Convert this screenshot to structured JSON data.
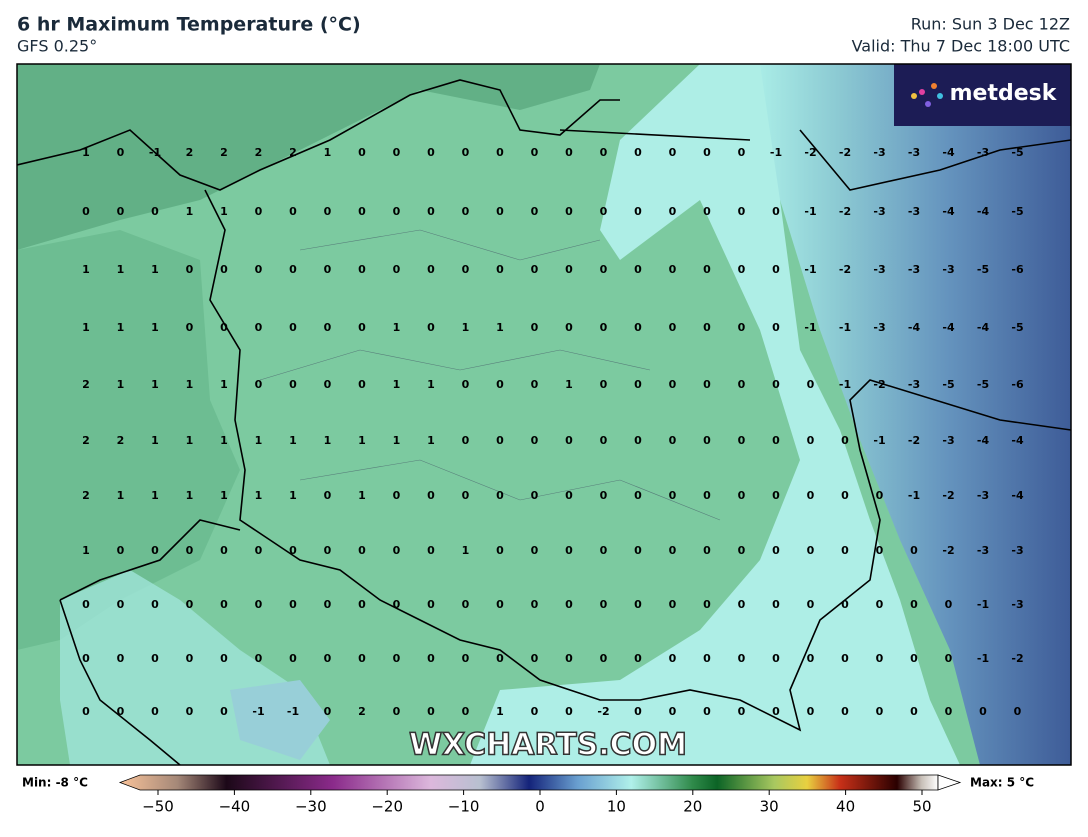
{
  "header": {
    "title": "6 hr Maximum Temperature (°C)",
    "subtitle": "GFS 0.25°",
    "run": "Run: Sun 3 Dec 12Z",
    "valid": "Valid: Thu 7 Dec 18:00 UTC"
  },
  "logo": "metdesk",
  "watermark": "WXCHARTS.COM",
  "grid": {
    "rows": [
      [
        1,
        0,
        -1,
        2,
        2,
        2,
        2,
        1,
        0,
        0,
        0,
        0,
        0,
        0,
        0,
        0,
        0,
        0,
        0,
        0,
        -1,
        -2,
        -2,
        -3,
        -3,
        -4,
        -3,
        -5
      ],
      [
        0,
        0,
        0,
        1,
        1,
        0,
        0,
        0,
        0,
        0,
        0,
        0,
        0,
        0,
        0,
        0,
        0,
        0,
        0,
        0,
        0,
        -1,
        -2,
        -3,
        -3,
        -4,
        -4,
        -5
      ],
      [
        1,
        1,
        1,
        0,
        0,
        0,
        0,
        0,
        0,
        0,
        0,
        0,
        0,
        0,
        0,
        0,
        0,
        0,
        0,
        0,
        0,
        -1,
        -2,
        -3,
        -3,
        -3,
        -5,
        -6
      ],
      [
        1,
        1,
        1,
        0,
        0,
        0,
        0,
        0,
        0,
        1,
        0,
        1,
        1,
        0,
        0,
        0,
        0,
        0,
        0,
        0,
        0,
        -1,
        -1,
        -3,
        -4,
        -4,
        -4,
        -5
      ],
      [
        2,
        1,
        1,
        1,
        1,
        0,
        0,
        0,
        0,
        1,
        1,
        0,
        0,
        0,
        1,
        0,
        0,
        0,
        0,
        0,
        0,
        0,
        -1,
        -2,
        -3,
        -5,
        -5,
        -6
      ],
      [
        2,
        2,
        1,
        1,
        1,
        1,
        1,
        1,
        1,
        1,
        1,
        0,
        0,
        0,
        0,
        0,
        0,
        0,
        0,
        0,
        0,
        0,
        0,
        -1,
        -2,
        -3,
        -4,
        -4
      ],
      [
        2,
        1,
        1,
        1,
        1,
        1,
        1,
        0,
        1,
        0,
        0,
        0,
        0,
        0,
        0,
        0,
        0,
        0,
        0,
        0,
        0,
        0,
        0,
        0,
        -1,
        -2,
        -3,
        -4
      ],
      [
        1,
        0,
        0,
        0,
        0,
        0,
        0,
        0,
        0,
        0,
        0,
        1,
        0,
        0,
        0,
        0,
        0,
        0,
        0,
        0,
        0,
        0,
        0,
        0,
        0,
        -2,
        -3,
        -3
      ],
      [
        0,
        0,
        0,
        0,
        0,
        0,
        0,
        0,
        0,
        0,
        0,
        0,
        0,
        0,
        0,
        0,
        0,
        0,
        0,
        0,
        0,
        0,
        0,
        0,
        0,
        0,
        -1,
        -3
      ],
      [
        0,
        0,
        0,
        0,
        0,
        0,
        0,
        0,
        0,
        0,
        0,
        0,
        0,
        0,
        0,
        0,
        0,
        0,
        0,
        0,
        0,
        0,
        0,
        0,
        0,
        0,
        -1,
        -2
      ],
      [
        0,
        0,
        0,
        0,
        0,
        -1,
        -1,
        0,
        2,
        0,
        0,
        0,
        1,
        0,
        0,
        -2,
        0,
        0,
        0,
        0,
        0,
        0,
        0,
        0,
        0,
        0,
        0,
        0
      ]
    ]
  },
  "colorbar": {
    "min_label": "Min: -8 °C",
    "max_label": "Max: 5 °C",
    "ticks": [
      {
        "value": -50,
        "label": "−50"
      },
      {
        "value": -40,
        "label": "−40"
      },
      {
        "value": -30,
        "label": "−30"
      },
      {
        "value": -20,
        "label": "−20"
      },
      {
        "value": -10,
        "label": "−10"
      },
      0,
      10,
      20,
      30,
      40,
      50
    ]
  }
}
